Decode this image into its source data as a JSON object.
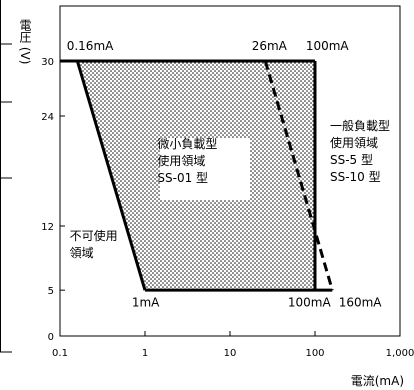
{
  "chart_data": {
    "type": "line",
    "ylabel": "電圧 (V)",
    "xlabel": "電流(mA)",
    "x_scale": "log",
    "xlim": [
      0.1,
      1000
    ],
    "ylim": [
      0,
      36
    ],
    "x_ticks": [
      {
        "value": 0.1,
        "label": "0.1"
      },
      {
        "value": 1,
        "label": "1"
      },
      {
        "value": 10,
        "label": "10"
      },
      {
        "value": 100,
        "label": "100"
      },
      {
        "value": 1000,
        "label": "1,000"
      }
    ],
    "y_ticks": [
      {
        "value": 0,
        "label": "0"
      },
      {
        "value": 5,
        "label": "5"
      },
      {
        "value": 12,
        "label": "12"
      },
      {
        "value": 24,
        "label": "24"
      },
      {
        "value": 30,
        "label": "30"
      }
    ],
    "boundaries": [
      {
        "id": "top",
        "style": "solid",
        "points": [
          [
            0.1,
            30
          ],
          [
            100,
            30
          ]
        ]
      },
      {
        "id": "bottom",
        "style": "solid",
        "points": [
          [
            1,
            5
          ],
          [
            160,
            5
          ]
        ]
      },
      {
        "id": "left-diagonal",
        "style": "solid",
        "points": [
          [
            0.16,
            30
          ],
          [
            1,
            5
          ]
        ]
      },
      {
        "id": "vertical-100mA",
        "style": "solid",
        "points": [
          [
            100,
            30
          ],
          [
            100,
            5
          ]
        ]
      },
      {
        "id": "dashed-26-160",
        "style": "dashed",
        "points": [
          [
            26,
            30
          ],
          [
            160,
            5
          ]
        ]
      }
    ],
    "regions": [
      {
        "id": "ss01",
        "shaded": true,
        "polygon": [
          [
            0.16,
            30
          ],
          [
            100,
            30
          ],
          [
            100,
            5
          ],
          [
            1,
            5
          ]
        ]
      }
    ],
    "annotations": [
      {
        "id": "ann-016",
        "text": "0.16mA",
        "x": 0.12,
        "y": 31.2
      },
      {
        "id": "ann-26",
        "text": "26mA",
        "x": 18,
        "y": 31.2
      },
      {
        "id": "ann-100top",
        "text": "100mA",
        "x": 78,
        "y": 31.2
      },
      {
        "id": "ann-1ma",
        "text": "1mA",
        "x": 0.7,
        "y": 3.2
      },
      {
        "id": "ann-100bot",
        "text": "100mA",
        "x": 48,
        "y": 3.2
      },
      {
        "id": "ann-160",
        "text": "160mA",
        "x": 190,
        "y": 3.2
      }
    ],
    "region_labels": [
      {
        "id": "label-ss01",
        "lines": [
          "微小負載型",
          "使用領域",
          "SS-01 型"
        ],
        "x": 1.4,
        "y": 20.5
      },
      {
        "id": "label-ss5",
        "lines": [
          "一般負載型",
          "使用領域",
          "SS-5 型",
          "SS-10 型"
        ],
        "x": 150,
        "y": 22.5
      },
      {
        "id": "label-unusable",
        "lines": [
          "不可使用",
          "領域"
        ],
        "x": 0.13,
        "y": 10.5
      }
    ]
  }
}
